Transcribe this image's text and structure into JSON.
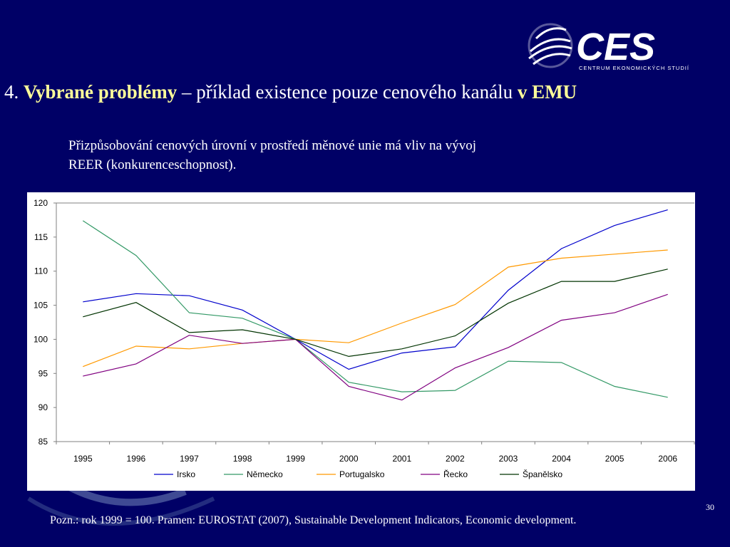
{
  "logo": {
    "text": "CES",
    "subtext": "CENTRUM EKONOMICKÝCH STUDIÍ"
  },
  "title": {
    "number": "4.",
    "bold_part": "Vybrané problémy",
    "middle": "– příklad existence pouze cenového kanálu",
    "bold_end": "v EMU"
  },
  "subtitle": {
    "line1": "Přizpůsobování cenových úrovní v prostředí měnové unie má vliv na vývoj",
    "line2": "REER (konkurenceschopnost)."
  },
  "chart_data": {
    "type": "line",
    "x": [
      "1995",
      "1996",
      "1997",
      "1998",
      "1999",
      "2000",
      "2001",
      "2002",
      "2003",
      "2004",
      "2005",
      "2006"
    ],
    "ylim": [
      85,
      120
    ],
    "yticks": [
      85,
      90,
      95,
      100,
      105,
      110,
      115,
      120
    ],
    "grid": false,
    "legend_position": "bottom",
    "series": [
      {
        "name": "Irsko",
        "color": "#0000cc",
        "values": [
          105.5,
          106.7,
          106.4,
          104.3,
          100,
          95.6,
          98.0,
          98.9,
          107.2,
          113.3,
          116.7,
          119.0
        ]
      },
      {
        "name": "Německo",
        "color": "#339966",
        "values": [
          117.4,
          112.3,
          103.9,
          103.1,
          100,
          93.7,
          92.3,
          92.5,
          96.8,
          96.6,
          93.1,
          91.5
        ]
      },
      {
        "name": "Portugalsko",
        "color": "#ff9900",
        "values": [
          96.0,
          99.0,
          98.6,
          99.4,
          100,
          99.5,
          102.4,
          105.1,
          110.6,
          111.9,
          112.5,
          113.1
        ]
      },
      {
        "name": "Řecko",
        "color": "#800080",
        "values": [
          94.6,
          96.4,
          100.6,
          99.4,
          100,
          93.1,
          91.1,
          95.8,
          98.8,
          102.8,
          103.9,
          106.6
        ]
      },
      {
        "name": "Španělsko",
        "color": "#003300",
        "values": [
          103.3,
          105.4,
          101.0,
          101.4,
          100,
          97.5,
          98.6,
          100.5,
          105.3,
          108.5,
          108.5,
          110.3
        ]
      }
    ]
  },
  "page_number": "30",
  "footnote": "Pozn.: rok 1999 = 100. Pramen: EUROSTAT (2007), Sustainable Development Indicators, Economic development."
}
